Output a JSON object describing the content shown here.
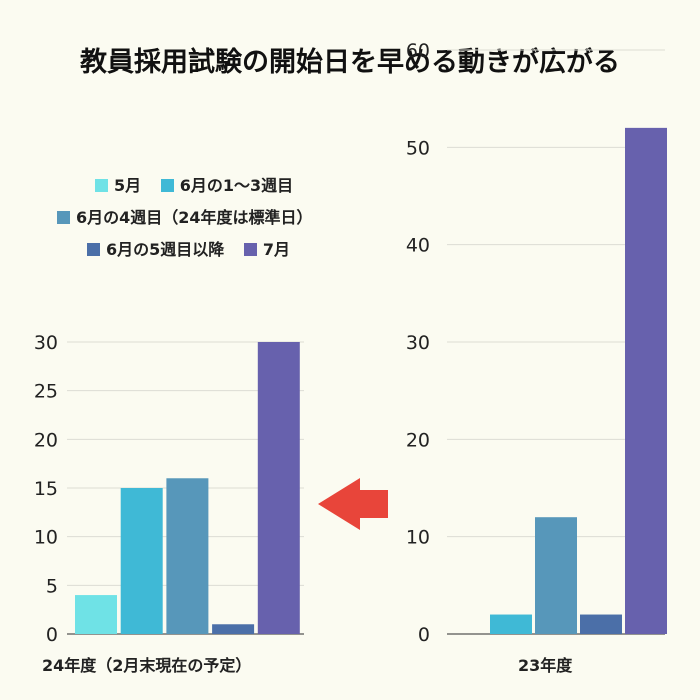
{
  "title": "教員採用試験の開始日を早める動きが広がる",
  "colors": {
    "background": "#fbfbf1",
    "arrow": "#e8453a"
  },
  "chart_data": [
    {
      "type": "bar",
      "xlabel": "24年度（2月末現在の予定）",
      "ylim": [
        0,
        30
      ],
      "yticks": [
        0,
        5,
        10,
        15,
        20,
        25,
        30
      ],
      "categories": [
        "5月",
        "6月の1〜3週目",
        "6月の4週目（24年度は標準日）",
        "6月の5週目以降",
        "7月"
      ],
      "values": [
        4,
        15,
        16,
        1,
        30
      ],
      "colors": [
        "#6fe2e6",
        "#3fb9d6",
        "#5797ba",
        "#4b6fa8",
        "#6761ad"
      ]
    },
    {
      "type": "bar",
      "xlabel": "23年度",
      "ylim": [
        0,
        60
      ],
      "yticks": [
        0,
        10,
        20,
        30,
        40,
        50,
        60
      ],
      "categories": [
        "5月",
        "6月の1〜3週目",
        "6月の4週目（24年度は標準日）",
        "6月の5週目以降",
        "7月"
      ],
      "values": [
        0,
        2,
        12,
        2,
        52
      ],
      "colors": [
        "#6fe2e6",
        "#3fb9d6",
        "#5797ba",
        "#4b6fa8",
        "#6761ad"
      ]
    }
  ],
  "legend": {
    "placement": "top-left",
    "entries": [
      {
        "label": "5月",
        "color": "#6fe2e6"
      },
      {
        "label": "6月の1〜3週目",
        "color": "#3fb9d6"
      },
      {
        "label": "6月の4週目（24年度は標準日）",
        "color": "#5797ba"
      },
      {
        "label": "6月の5週目以降",
        "color": "#4b6fa8"
      },
      {
        "label": "7月",
        "color": "#6761ad"
      }
    ]
  }
}
